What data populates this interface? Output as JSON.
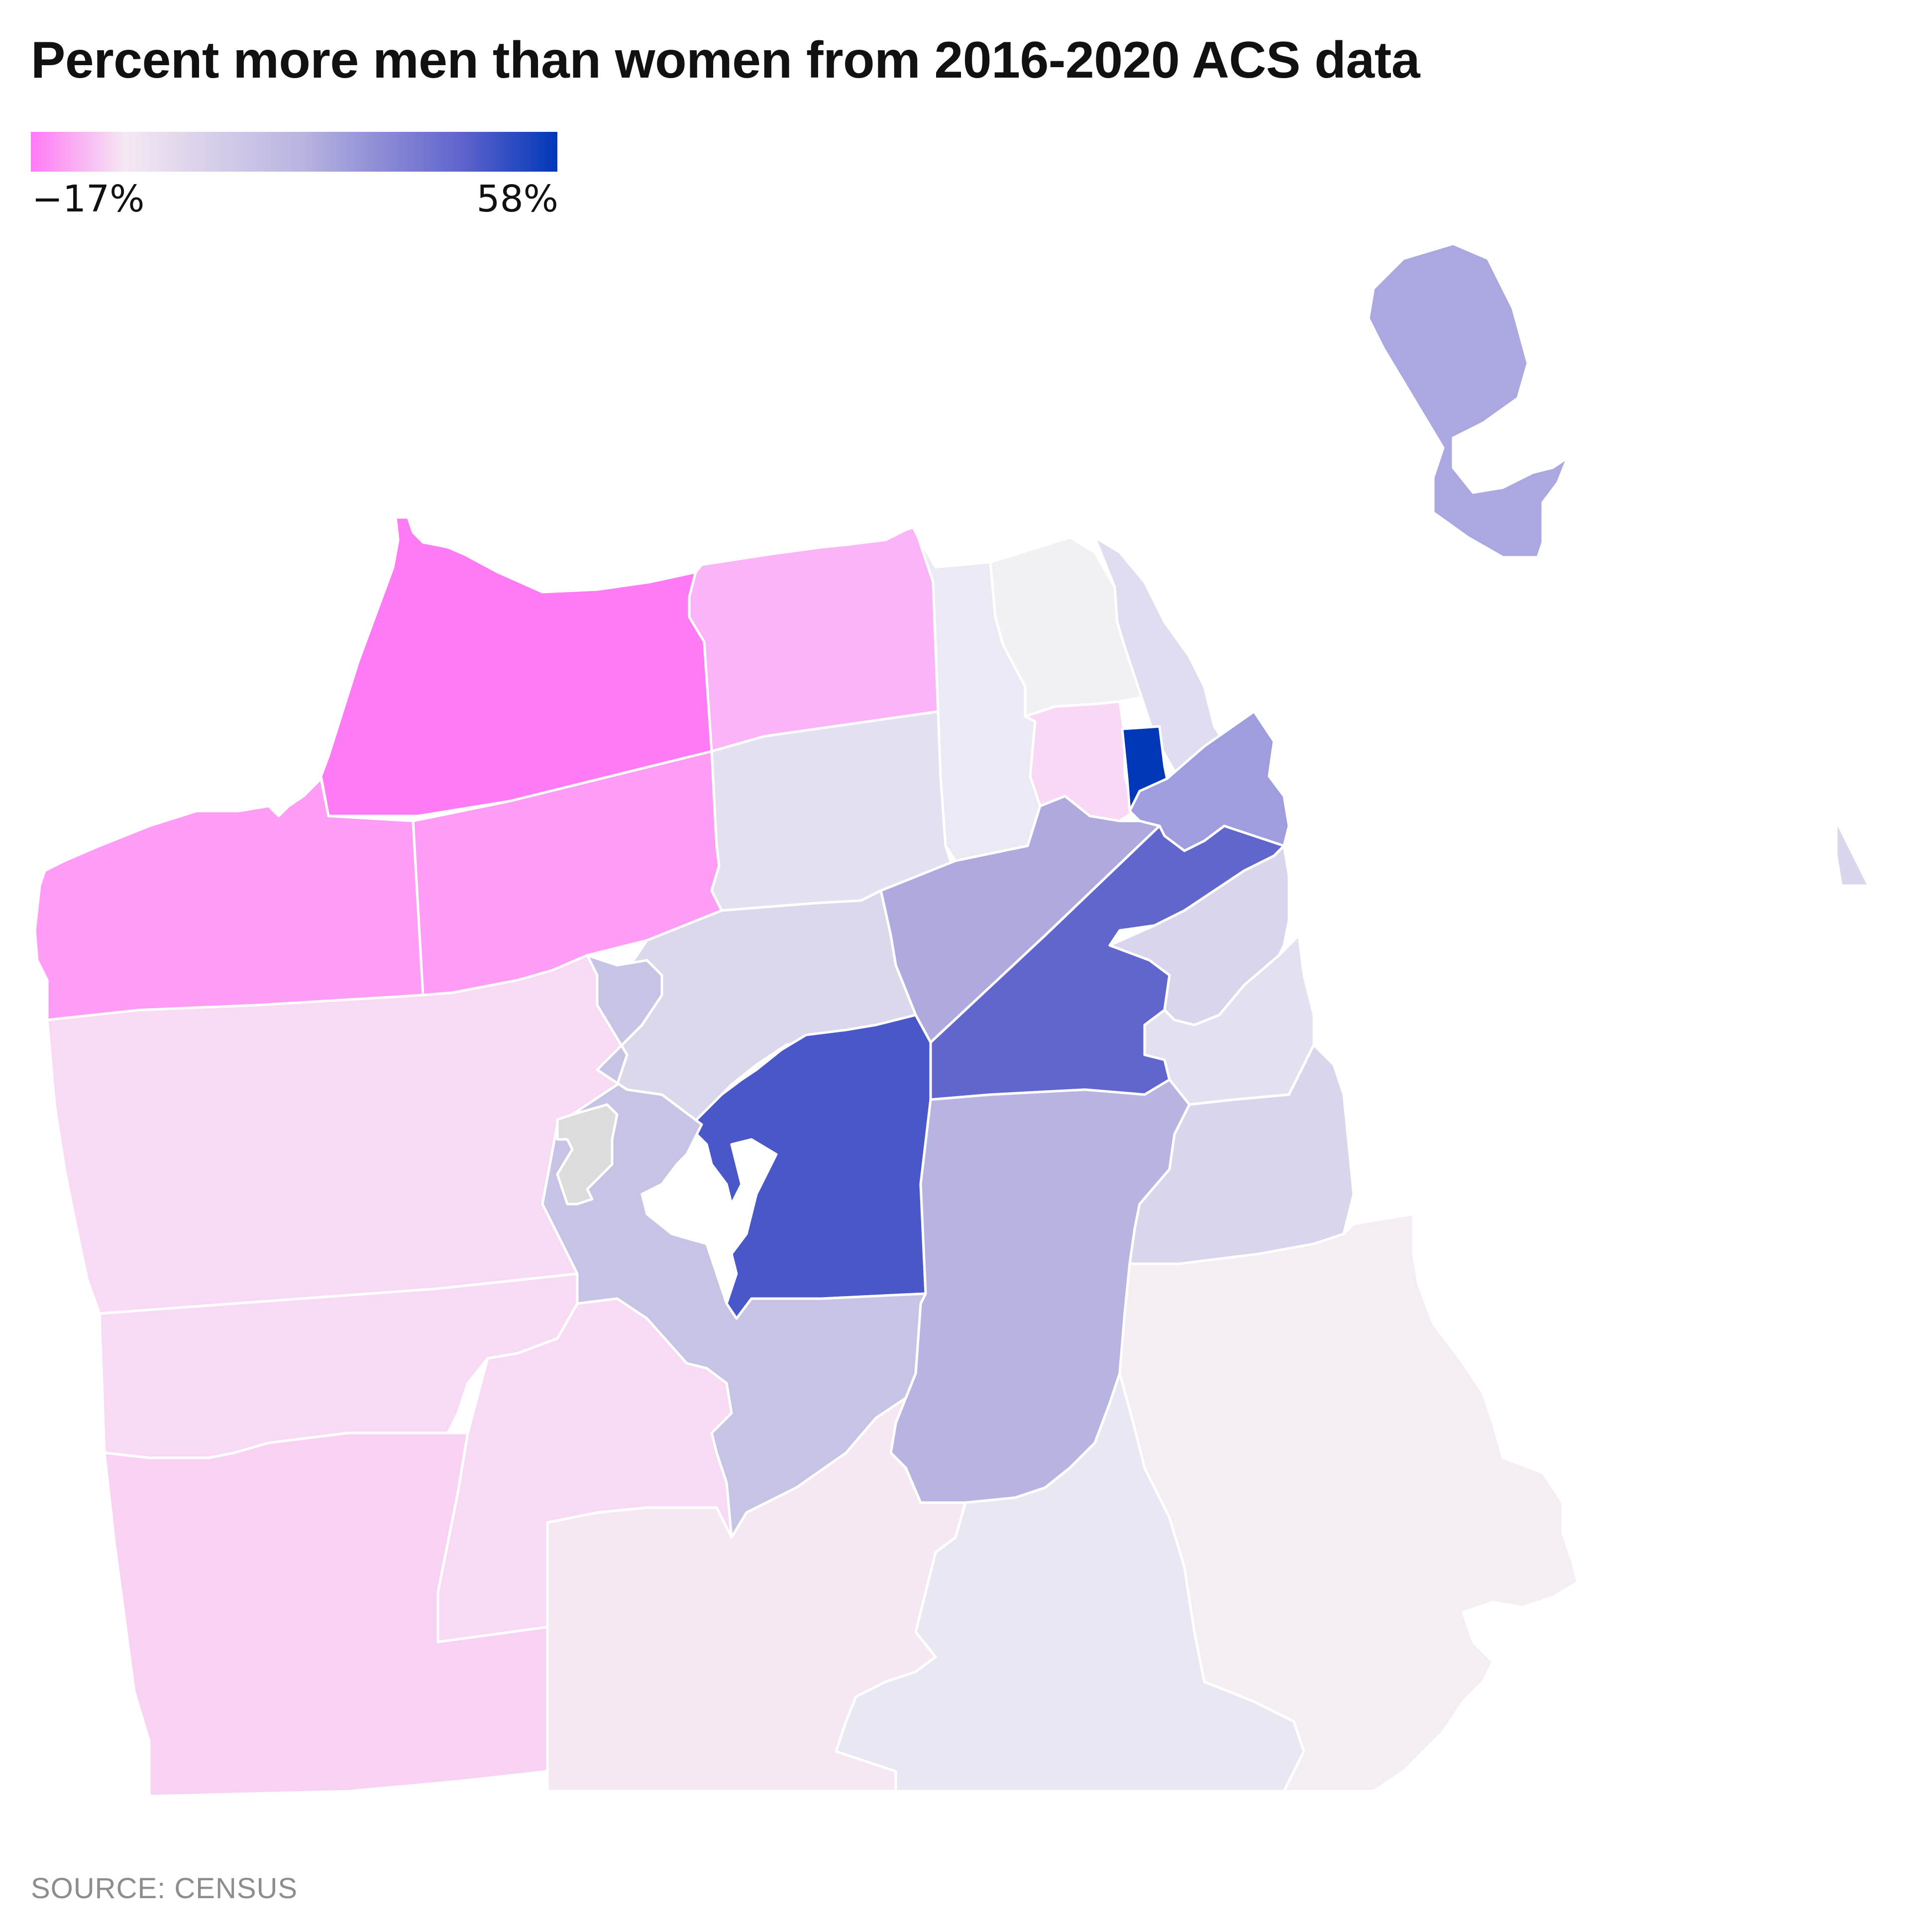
{
  "title": "Percent more men than women from 2016-2020 ACS data",
  "legend": {
    "min_label": "−17%",
    "max_label": "58%",
    "min_value": -17,
    "max_value": 58,
    "gradient": [
      "#ff7af5",
      "#f4e8f2",
      "#b7b3e0",
      "#5f63cc",
      "#0038b8"
    ]
  },
  "source": "SOURCE: CENSUS",
  "no_data_color": "#dcdcdc",
  "map_data": {
    "type": "choropleth",
    "regions": [
      {
        "id": "presidio-richmond-north",
        "color": "#ff7af5"
      },
      {
        "id": "marina",
        "color": "#fcb4f8"
      },
      {
        "id": "outer-richmond",
        "color": "#ff9cf6"
      },
      {
        "id": "inner-richmond",
        "color": "#ff9cf6"
      },
      {
        "id": "pacific-heights",
        "color": "#e2e0f1"
      },
      {
        "id": "russian-hill",
        "color": "#ebe9f4"
      },
      {
        "id": "north-beach",
        "color": "#f1f0f3"
      },
      {
        "id": "financial-east",
        "color": "#e0ddf0"
      },
      {
        "id": "chinatown",
        "color": "#f8d8f4"
      },
      {
        "id": "tenderloin",
        "color": "#0038b8"
      },
      {
        "id": "downtown-east",
        "color": "#9f9ddd"
      },
      {
        "id": "western-addition",
        "color": "#aeaade"
      },
      {
        "id": "haight-ashbury",
        "color": "#dbd8ec"
      },
      {
        "id": "soma",
        "color": "#6166cc"
      },
      {
        "id": "south-beach",
        "color": "#d8d5ed"
      },
      {
        "id": "mission-bay",
        "color": "#e3e1f1"
      },
      {
        "id": "castro",
        "color": "#4a57c8"
      },
      {
        "id": "mission",
        "color": "#b8b4e2"
      },
      {
        "id": "potrero",
        "color": "#d8d5ed"
      },
      {
        "id": "sunset-north",
        "color": "#f8daf4"
      },
      {
        "id": "sunset-mid",
        "color": "#f8daf4"
      },
      {
        "id": "sunset-south",
        "color": "#f8d2f3"
      },
      {
        "id": "twin-peaks",
        "color": "#c6c3e5"
      },
      {
        "id": "parkside",
        "color": "#f8daf4"
      },
      {
        "id": "ocean-view",
        "color": "#f6e8f3"
      },
      {
        "id": "excelsior",
        "color": "#e9e7f2"
      },
      {
        "id": "bayview",
        "color": "#f4edf3"
      },
      {
        "id": "treasure-island",
        "color": "#aba7e0"
      },
      {
        "id": "yerba-buena",
        "color": "#d8d5ed"
      },
      {
        "id": "mount-sutro",
        "color": "#dcdcdc"
      }
    ]
  }
}
